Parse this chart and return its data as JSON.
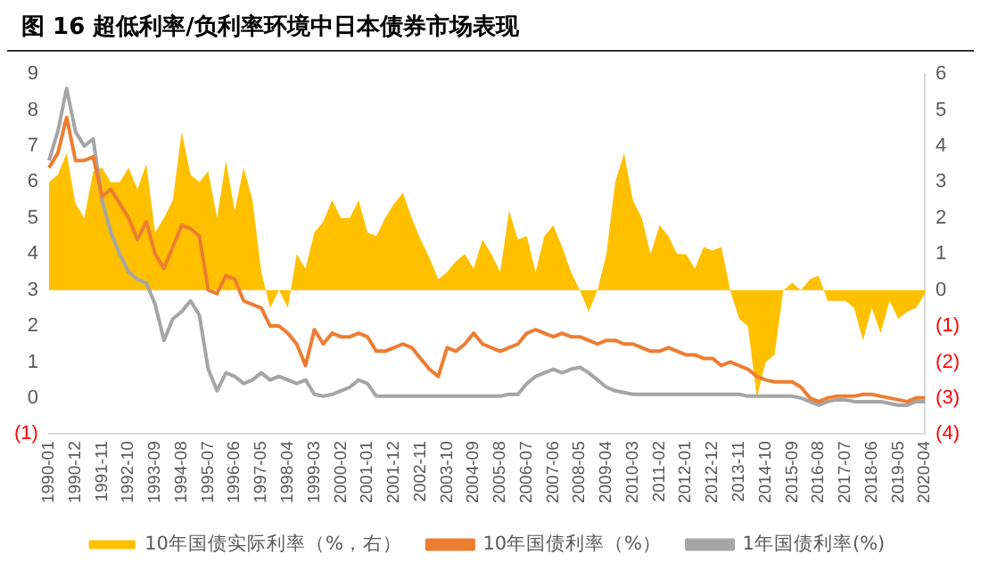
{
  "chart_data": {
    "type": "line",
    "title": "图 16 超低利率/负利率环境中日本债券市场表现",
    "categories": [
      "1990-01",
      null,
      null,
      "1990-12",
      null,
      null,
      "1991-11",
      null,
      null,
      "1992-10",
      null,
      null,
      "1993-09",
      null,
      null,
      "1994-08",
      null,
      null,
      "1995-07",
      null,
      null,
      "1996-06",
      null,
      null,
      "1997-05",
      null,
      null,
      "1998-04",
      null,
      null,
      "1999-03",
      null,
      null,
      "2000-02",
      null,
      null,
      "2001-01",
      null,
      null,
      "2001-12",
      null,
      null,
      "2002-11",
      null,
      null,
      "2003-10",
      null,
      null,
      "2004-09",
      null,
      null,
      "2005-08",
      null,
      null,
      "2006-07",
      null,
      null,
      "2007-06",
      null,
      null,
      "2008-05",
      null,
      null,
      "2009-04",
      null,
      null,
      "2010-03",
      null,
      null,
      "2011-02",
      null,
      null,
      "2012-01",
      null,
      null,
      "2012-12",
      null,
      null,
      "2013-11",
      null,
      null,
      "2014-10",
      null,
      null,
      "2015-09",
      null,
      null,
      "2016-08",
      null,
      null,
      "2017-07",
      null,
      null,
      "2018-06",
      null,
      null,
      "2019-05",
      null,
      null,
      "2020-04"
    ],
    "series": [
      {
        "name": "10年国债实际利率（%，右）",
        "type": "area",
        "axis": "y2",
        "color": "#ffc000",
        "values": [
          3.0,
          3.2,
          3.8,
          2.4,
          2.0,
          3.3,
          3.4,
          3.0,
          3.0,
          3.4,
          2.8,
          3.5,
          1.6,
          2.0,
          2.5,
          4.4,
          3.2,
          3.0,
          3.3,
          2.0,
          3.6,
          2.2,
          3.4,
          2.5,
          0.5,
          -0.5,
          0.0,
          -0.5,
          1.0,
          0.6,
          1.6,
          1.9,
          2.5,
          2.0,
          2.0,
          2.5,
          1.6,
          1.5,
          2.0,
          2.4,
          2.7,
          2.0,
          1.4,
          0.9,
          0.3,
          0.5,
          0.8,
          1.0,
          0.6,
          1.4,
          1.0,
          0.5,
          2.2,
          1.4,
          1.5,
          0.5,
          1.5,
          1.8,
          1.2,
          0.5,
          0.0,
          -0.6,
          0.0,
          1.0,
          3.0,
          3.8,
          2.5,
          2.0,
          1.0,
          1.8,
          1.5,
          1.0,
          1.0,
          0.6,
          1.2,
          1.1,
          1.2,
          0.0,
          -0.8,
          -1.0,
          -3.0,
          -2.0,
          -1.8,
          0.0,
          0.2,
          0.0,
          0.3,
          0.4,
          -0.3,
          -0.3,
          -0.3,
          -0.5,
          -1.4,
          -0.5,
          -1.2,
          -0.3,
          -0.8,
          -0.6,
          -0.5,
          -0.1
        ]
      },
      {
        "name": "10年国债利率（%）",
        "color": "#ed7d31",
        "values": [
          6.4,
          6.8,
          7.8,
          6.6,
          6.6,
          6.7,
          5.6,
          5.8,
          5.4,
          5.0,
          4.4,
          4.9,
          4.0,
          3.6,
          4.2,
          4.8,
          4.7,
          4.5,
          3.0,
          2.9,
          3.4,
          3.3,
          2.7,
          2.6,
          2.5,
          2.0,
          2.0,
          1.8,
          1.5,
          0.9,
          1.9,
          1.5,
          1.8,
          1.7,
          1.7,
          1.8,
          1.7,
          1.3,
          1.3,
          1.4,
          1.5,
          1.4,
          1.1,
          0.8,
          0.6,
          1.4,
          1.3,
          1.5,
          1.8,
          1.5,
          1.4,
          1.3,
          1.4,
          1.5,
          1.8,
          1.9,
          1.8,
          1.7,
          1.8,
          1.7,
          1.7,
          1.6,
          1.5,
          1.6,
          1.6,
          1.5,
          1.5,
          1.4,
          1.3,
          1.3,
          1.4,
          1.3,
          1.2,
          1.2,
          1.1,
          1.1,
          0.9,
          1.0,
          0.9,
          0.8,
          0.6,
          0.5,
          0.45,
          0.45,
          0.45,
          0.3,
          0.0,
          -0.1,
          0.0,
          0.05,
          0.05,
          0.05,
          0.1,
          0.1,
          0.05,
          0.0,
          -0.05,
          -0.1,
          0.0,
          0.0
        ]
      },
      {
        "name": "1年国债利率(%)",
        "color": "#a5a5a5",
        "values": [
          6.6,
          7.4,
          8.6,
          7.4,
          7.0,
          7.2,
          5.5,
          4.6,
          4.0,
          3.5,
          3.3,
          3.2,
          2.6,
          1.6,
          2.2,
          2.4,
          2.7,
          2.3,
          0.8,
          0.2,
          0.7,
          0.6,
          0.4,
          0.5,
          0.7,
          0.5,
          0.6,
          0.5,
          0.4,
          0.5,
          0.1,
          0.05,
          0.1,
          0.2,
          0.3,
          0.5,
          0.4,
          0.05,
          0.05,
          0.05,
          0.05,
          0.05,
          0.05,
          0.05,
          0.05,
          0.05,
          0.05,
          0.05,
          0.05,
          0.05,
          0.05,
          0.05,
          0.1,
          0.1,
          0.4,
          0.6,
          0.7,
          0.8,
          0.7,
          0.8,
          0.85,
          0.7,
          0.5,
          0.3,
          0.2,
          0.15,
          0.1,
          0.1,
          0.1,
          0.1,
          0.1,
          0.1,
          0.1,
          0.1,
          0.1,
          0.1,
          0.1,
          0.1,
          0.1,
          0.05,
          0.05,
          0.05,
          0.05,
          0.05,
          0.05,
          0.0,
          -0.1,
          -0.2,
          -0.1,
          -0.05,
          -0.05,
          -0.1,
          -0.1,
          -0.1,
          -0.1,
          -0.15,
          -0.2,
          -0.2,
          -0.1,
          -0.1
        ]
      }
    ],
    "ylim": [
      -1,
      9
    ],
    "yticks": [
      {
        "value": -1,
        "label": "(1)"
      },
      0,
      1,
      2,
      3,
      4,
      5,
      6,
      7,
      8,
      9
    ],
    "y2lim": [
      -4,
      6
    ],
    "y2ticks": [
      {
        "value": -4,
        "label": "(4)"
      },
      {
        "value": -3,
        "label": "(3)"
      },
      {
        "value": -2,
        "label": "(2)"
      },
      {
        "value": -1,
        "label": "(1)"
      },
      0,
      1,
      2,
      3,
      4,
      5,
      6
    ],
    "grid": false,
    "legend": "bottom",
    "marker": "none",
    "line_style": "solid"
  }
}
